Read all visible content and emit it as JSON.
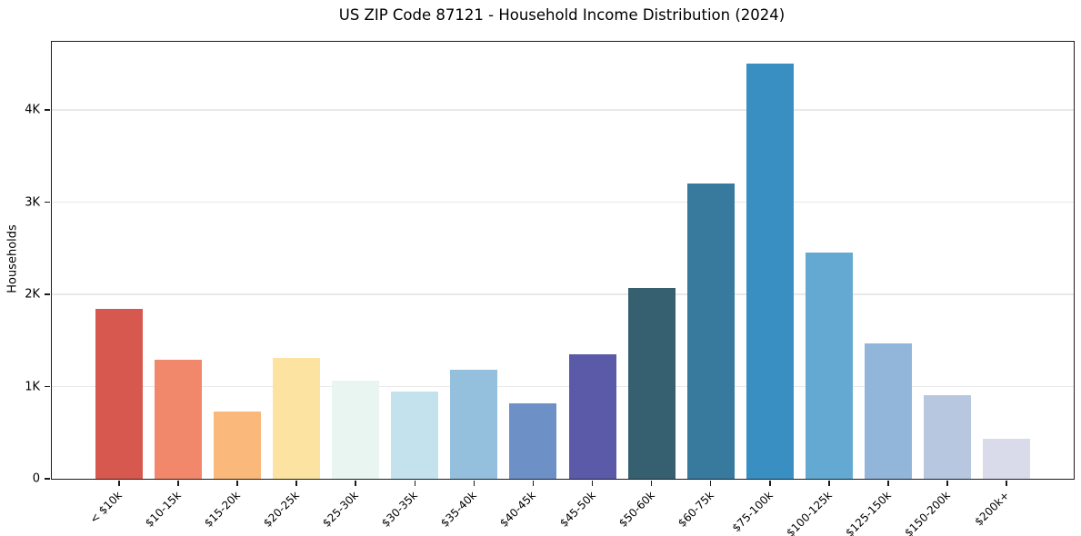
{
  "chart_data": {
    "type": "bar",
    "title": "US ZIP Code 87121 - Household Income Distribution (2024)",
    "xlabel": "",
    "ylabel": "Households",
    "categories": [
      "< $10k",
      "$10-15k",
      "$15-20k",
      "$20-25k",
      "$25-30k",
      "$30-35k",
      "$35-40k",
      "$40-45k",
      "$45-50k",
      "$50-60k",
      "$60-75k",
      "$75-100k",
      "$100-125k",
      "$125-150k",
      "$150-200k",
      "$200k+"
    ],
    "values": [
      1840,
      1295,
      725,
      1315,
      1065,
      950,
      1185,
      815,
      1350,
      2070,
      3200,
      4500,
      2450,
      1470,
      910,
      430
    ],
    "bar_colors": [
      "#d7584e",
      "#f1876b",
      "#fab87b",
      "#fce3a1",
      "#e9f5f1",
      "#c4e2ed",
      "#94c0dd",
      "#6d90c6",
      "#5a5aa9",
      "#36606f",
      "#377a9e",
      "#3a8fc2",
      "#63a9d1",
      "#92b6d9",
      "#b6c7df",
      "#d9daea"
    ],
    "ylim": [
      0,
      4740
    ],
    "yticks": [
      {
        "value": 0,
        "label": "0"
      },
      {
        "value": 1000,
        "label": "1K"
      },
      {
        "value": 2000,
        "label": "2K"
      },
      {
        "value": 3000,
        "label": "3K"
      },
      {
        "value": 4000,
        "label": "4K"
      }
    ],
    "grid": "horizontal gridlines at y ticks, none vertical",
    "legend": "none",
    "style": {
      "background": "#ffffff",
      "spine_color": "#1c1c1c",
      "grid_color": "#e9e9e9",
      "text_color": "#000000",
      "x_label_rotation_deg": 45
    }
  }
}
